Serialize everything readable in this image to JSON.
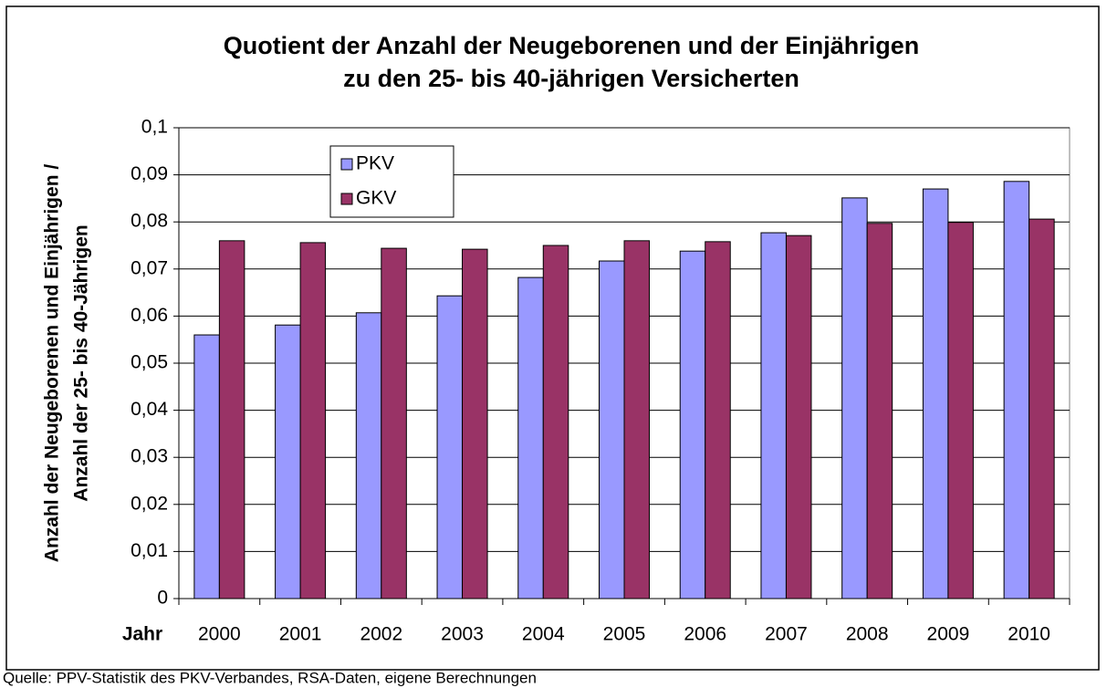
{
  "chart_data": {
    "type": "bar",
    "title": [
      "Quotient der Anzahl der Neugeborenen und der Einjährigen",
      "zu den 25- bis 40-jährigen Versicherten"
    ],
    "ylabel": [
      "Anzahl der Neugeborenen und Einjährigen /",
      "Anzahl der 25- bis 40-Jährigen"
    ],
    "xlabel": "Jahr",
    "source": "Quelle: PPV-Statistik des PKV-Verbandes, RSA-Daten, eigene Berechnungen",
    "categories": [
      "2000",
      "2001",
      "2002",
      "2003",
      "2004",
      "2005",
      "2006",
      "2007",
      "2008",
      "2009",
      "2010"
    ],
    "series": [
      {
        "name": "PKV",
        "color": "#9999ff",
        "values": [
          0.056,
          0.0581,
          0.0607,
          0.0643,
          0.0682,
          0.0717,
          0.0738,
          0.0777,
          0.0851,
          0.087,
          0.0886
        ]
      },
      {
        "name": "GKV",
        "color": "#993366",
        "values": [
          0.076,
          0.0756,
          0.0744,
          0.0742,
          0.075,
          0.076,
          0.0758,
          0.0771,
          0.0797,
          0.0799,
          0.0806
        ]
      }
    ],
    "ylim": [
      0,
      0.1
    ],
    "yticks": [
      0,
      {
        "value": 0.01,
        "label": "0,01"
      },
      {
        "value": 0.02,
        "label": "0,02"
      },
      {
        "value": 0.03,
        "label": "0,03"
      },
      {
        "value": 0.04,
        "label": "0,04"
      },
      {
        "value": 0.05,
        "label": "0,05"
      },
      {
        "value": 0.06,
        "label": "0,06"
      },
      {
        "value": 0.07,
        "label": "0,07"
      },
      {
        "value": 0.08,
        "label": "0,08"
      },
      {
        "value": 0.09,
        "label": "0,09"
      },
      {
        "value": 0.1,
        "label": "0,1"
      }
    ],
    "grid": true,
    "legend": "upper left"
  }
}
